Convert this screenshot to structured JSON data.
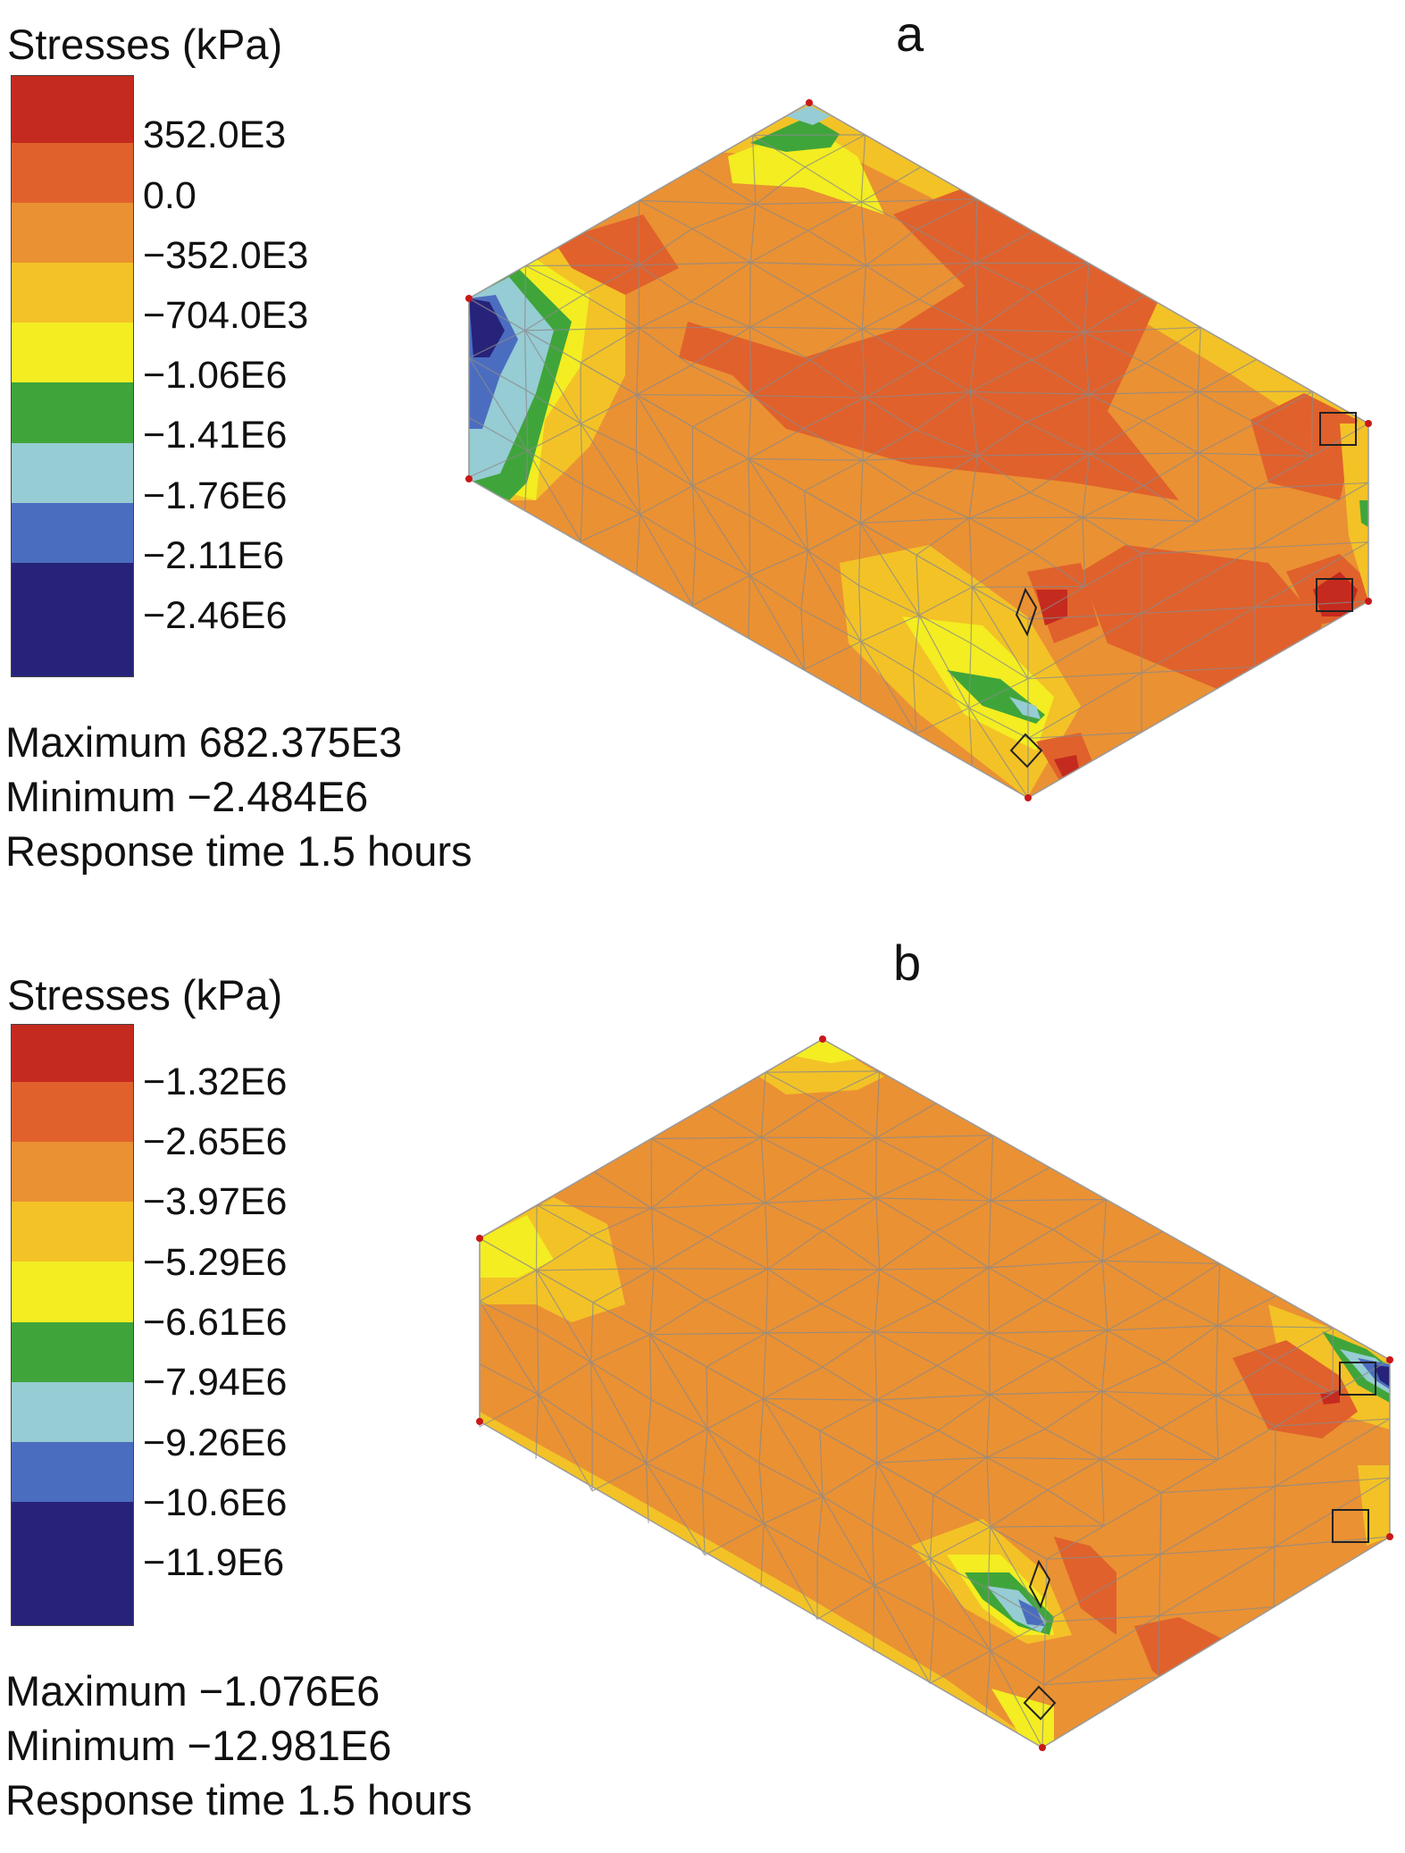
{
  "figure": {
    "panels": [
      {
        "letter": "a",
        "legend_title": "Stresses (kPa)",
        "tick_labels": [
          "352.0E3",
          "0.0",
          "−352.0E3",
          "−704.0E3",
          "−1.06E6",
          "−1.41E6",
          "−1.76E6",
          "−2.11E6",
          "−2.46E6"
        ],
        "stats": [
          "Maximum 682.375E3",
          "Minimum −2.484E6",
          "Response time 1.5 hours"
        ]
      },
      {
        "letter": "b",
        "legend_title": "Stresses (kPa)",
        "tick_labels": [
          "−1.32E6",
          "−2.65E6",
          "−3.97E6",
          "−5.29E6",
          "−6.61E6",
          "−7.94E6",
          "−9.26E6",
          "−10.6E6",
          "−11.9E6"
        ],
        "stats": [
          "Maximum −1.076E6",
          "Minimum −12.981E6",
          "Response time 1.5 hours"
        ]
      }
    ]
  },
  "colors": {
    "scale": [
      "#c52a1e",
      "#e0612c",
      "#ea9133",
      "#f3c227",
      "#f3ed22",
      "#3fa53b",
      "#96ccd3",
      "#4b6dc0",
      "#27237a"
    ],
    "mesh_line": "#8a8a8a",
    "node": "#c81818"
  }
}
